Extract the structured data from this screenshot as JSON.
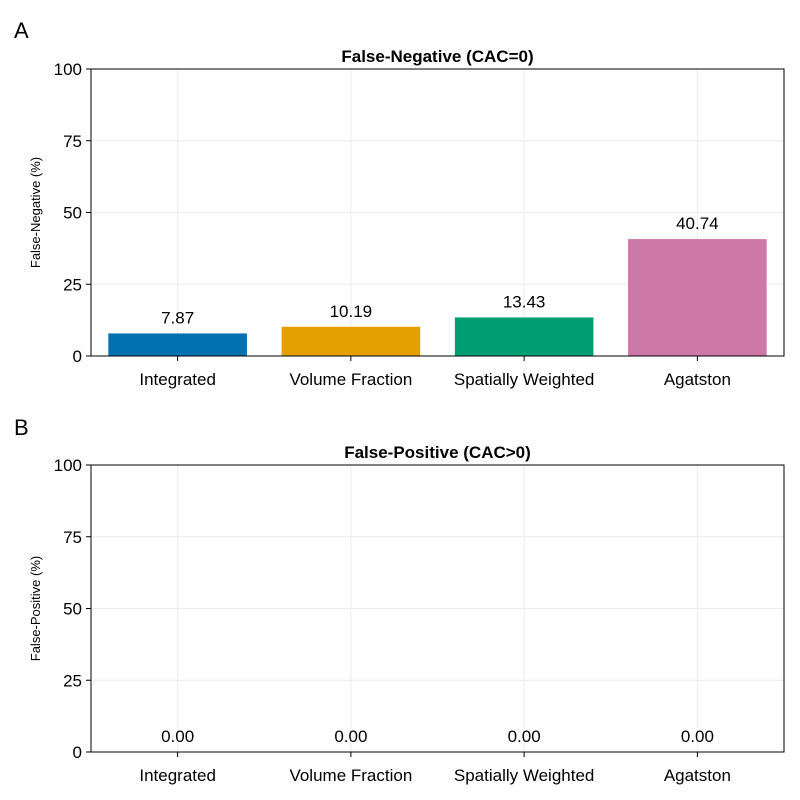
{
  "panel_letters": [
    "A",
    "B"
  ],
  "chart_data": [
    {
      "type": "bar",
      "title": "False-Negative (CAC=0)",
      "xlabel": "",
      "ylabel": "False-Negative (%)",
      "categories": [
        "Integrated",
        "Volume Fraction",
        "Spatially Weighted",
        "Agatston"
      ],
      "values": [
        7.87,
        10.19,
        13.43,
        40.74
      ],
      "value_labels": [
        "7.87",
        "10.19",
        "13.43",
        "40.74"
      ],
      "colors": [
        "#0072b2",
        "#e69f00",
        "#009e73",
        "#cc79a7"
      ],
      "ylim": [
        0,
        100
      ],
      "yticks": [
        0,
        25,
        50,
        75,
        100
      ],
      "grid": true
    },
    {
      "type": "bar",
      "title": "False-Positive (CAC>0)",
      "xlabel": "",
      "ylabel": "False-Positive (%)",
      "categories": [
        "Integrated",
        "Volume Fraction",
        "Spatially Weighted",
        "Agatston"
      ],
      "values": [
        0,
        0,
        0,
        0
      ],
      "value_labels": [
        "0.00",
        "0.00",
        "0.00",
        "0.00"
      ],
      "colors": [
        "#0072b2",
        "#e69f00",
        "#009e73",
        "#cc79a7"
      ],
      "ylim": [
        0,
        100
      ],
      "yticks": [
        0,
        25,
        50,
        75,
        100
      ],
      "grid": true
    }
  ]
}
